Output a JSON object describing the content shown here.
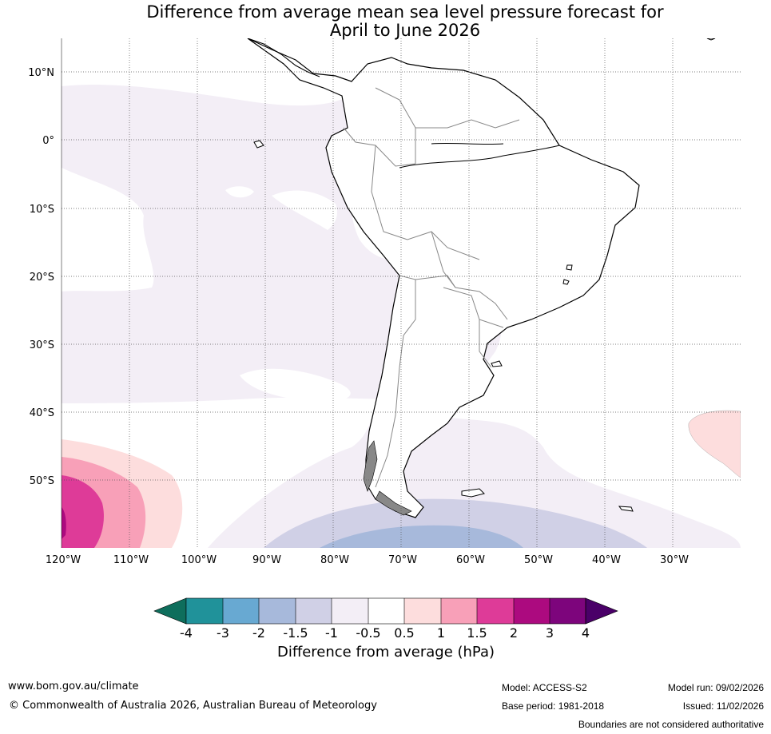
{
  "title": {
    "line1": "Difference from average mean sea level pressure forecast for",
    "line2": "April to June 2026"
  },
  "map": {
    "lat_ticks": [
      "10°N",
      "0°",
      "10°S",
      "20°S",
      "30°S",
      "40°S",
      "50°S"
    ],
    "lon_ticks": [
      "120°W",
      "110°W",
      "100°W",
      "90°W",
      "80°W",
      "70°W",
      "60°W",
      "50°W",
      "40°W",
      "30°W"
    ]
  },
  "colorbar": {
    "ticks": [
      "-4",
      "-3",
      "-2",
      "-1.5",
      "-1",
      "-0.5",
      "0.5",
      "1",
      "1.5",
      "2",
      "3",
      "4"
    ],
    "colors": [
      "#0e6e5c",
      "#20929a",
      "#68a9d2",
      "#a7b9db",
      "#d0d0e6",
      "#f3eef6",
      "#ffffff",
      "#fddddd",
      "#f8a0b8",
      "#de3b98",
      "#ac0a7f",
      "#7d057c",
      "#4a0068"
    ],
    "label": "Difference from average (hPa)"
  },
  "footer": {
    "website": "www.bom.gov.au/climate",
    "copyright": "© Commonwealth of Australia 2026, Australian Bureau of Meteorology",
    "model": "Model: ACCESS-S2",
    "base_period": "Base period: 1981-2018",
    "model_run": "Model run: 09/02/2026",
    "issued": "Issued: 11/02/2026",
    "disclaimer": "Boundaries are not considered authoritative"
  }
}
